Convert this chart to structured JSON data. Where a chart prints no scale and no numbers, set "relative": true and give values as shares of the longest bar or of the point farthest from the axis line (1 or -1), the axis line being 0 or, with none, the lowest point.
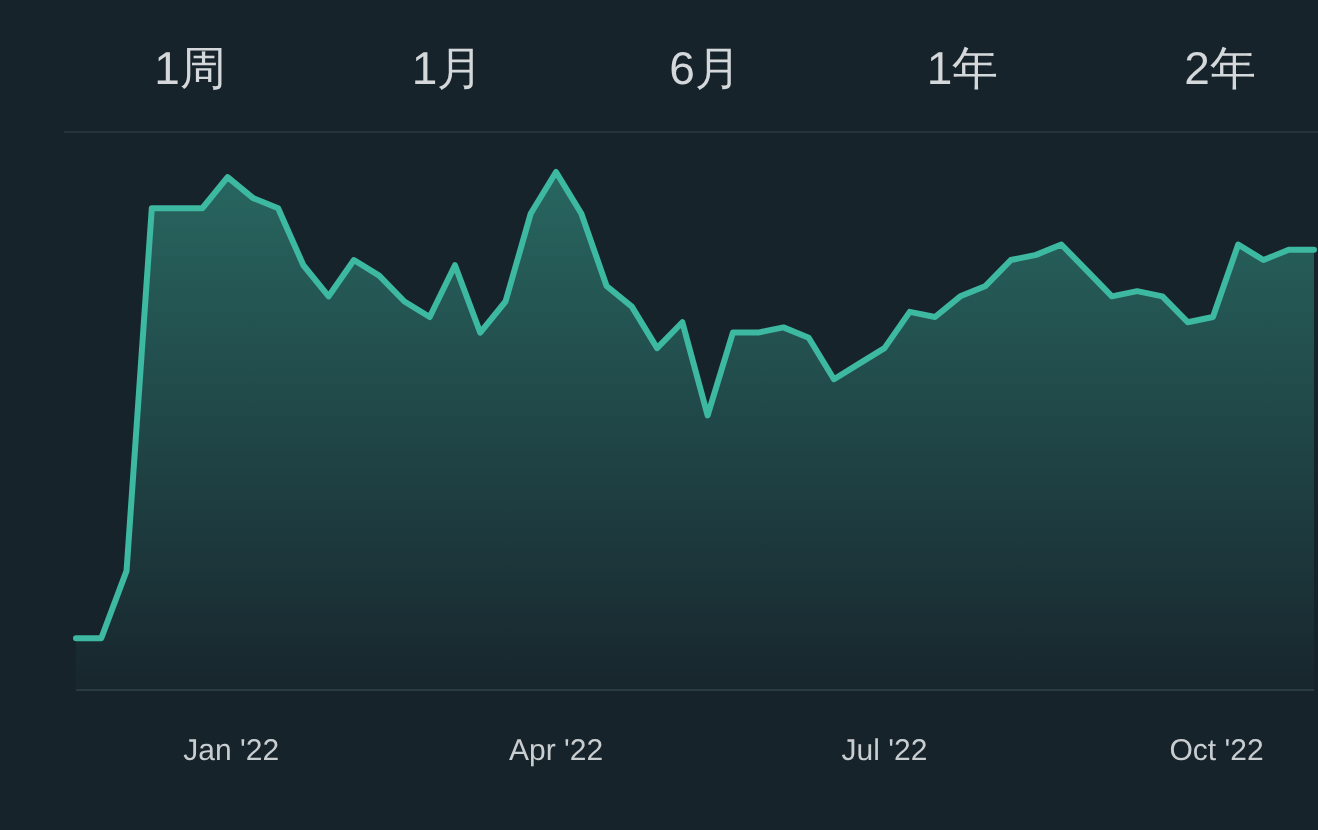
{
  "chart_data": {
    "type": "area",
    "relative": true,
    "color": "#3db8a1",
    "annotations": [
      "1周",
      "1月",
      "6月",
      "1年",
      "2年"
    ],
    "x": [
      "2021-11-19",
      "2021-11-26",
      "2021-12-03",
      "2021-12-10",
      "2021-12-17",
      "2021-12-24",
      "2021-12-31",
      "2022-01-07",
      "2022-01-14",
      "2022-01-21",
      "2022-01-28",
      "2022-02-04",
      "2022-02-11",
      "2022-02-18",
      "2022-02-25",
      "2022-03-04",
      "2022-03-11",
      "2022-03-18",
      "2022-03-25",
      "2022-04-01",
      "2022-04-08",
      "2022-04-15",
      "2022-04-22",
      "2022-04-29",
      "2022-05-06",
      "2022-05-13",
      "2022-05-20",
      "2022-05-27",
      "2022-06-03",
      "2022-06-10",
      "2022-06-17",
      "2022-06-24",
      "2022-07-01",
      "2022-07-08",
      "2022-07-15",
      "2022-07-22",
      "2022-07-29",
      "2022-08-05",
      "2022-08-12",
      "2022-08-19",
      "2022-08-26",
      "2022-09-02",
      "2022-09-09",
      "2022-09-16",
      "2022-09-23",
      "2022-09-30",
      "2022-10-07",
      "2022-10-14",
      "2022-10-21",
      "2022-10-28"
    ],
    "values": [
      0.1,
      0.1,
      0.23,
      0.93,
      0.93,
      0.93,
      0.99,
      0.95,
      0.93,
      0.82,
      0.76,
      0.83,
      0.8,
      0.75,
      0.72,
      0.82,
      0.69,
      0.75,
      0.92,
      1,
      0.92,
      0.78,
      0.74,
      0.66,
      0.71,
      0.53,
      0.69,
      0.69,
      0.7,
      0.68,
      0.6,
      0.63,
      0.66,
      0.73,
      0.72,
      0.76,
      0.78,
      0.83,
      0.84,
      0.86,
      0.81,
      0.76,
      0.77,
      0.76,
      0.71,
      0.72,
      0.86,
      0.83,
      0.85,
      0.85
    ],
    "xlim": [
      "2021-11-19",
      "2022-10-28"
    ],
    "xticks": [
      {
        "value": "2022-01-01",
        "label": "Jan '22"
      },
      {
        "value": "2022-04-01",
        "label": "Apr '22"
      },
      {
        "value": "2022-07-01",
        "label": "Jul '22"
      },
      {
        "value": "2022-10-01",
        "label": "Oct '22"
      }
    ]
  }
}
